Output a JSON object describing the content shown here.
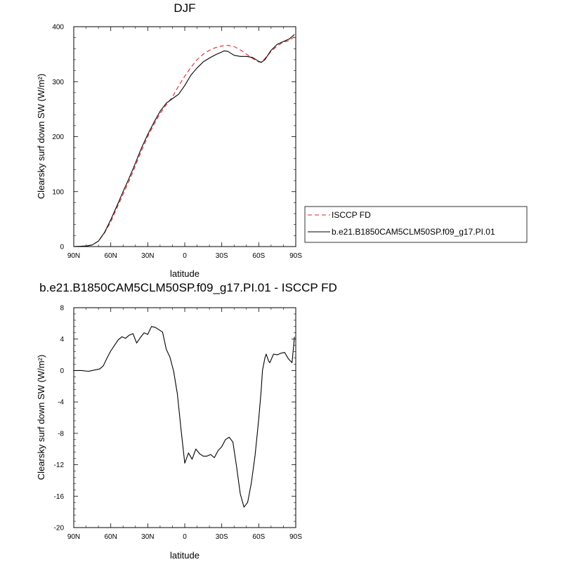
{
  "chart_data": [
    {
      "type": "line",
      "title": "DJF",
      "xlabel": "latitude",
      "ylabel": "Clearsky surf down SW (W/m²)",
      "xlim": [
        90,
        -90
      ],
      "ylim": [
        0,
        400
      ],
      "xticks": [
        90,
        60,
        30,
        0,
        -30,
        -60,
        -90
      ],
      "xtick_labels": [
        "90N",
        "60N",
        "30N",
        "0",
        "30S",
        "60S",
        "90S"
      ],
      "yticks": [
        0,
        100,
        200,
        300,
        400
      ],
      "ytick_labels": [
        "0",
        "100",
        "200",
        "300",
        "400"
      ],
      "legend": {
        "position": "right",
        "entries": [
          "ISCCP FD",
          "b.e21.B1850CAM5CLM50SP.f09_g17.PI.01"
        ]
      },
      "series": [
        {
          "name": "ISCCP FD",
          "color": "#e8202a",
          "dash": "dashed",
          "x": [
            90,
            80,
            75,
            70,
            65,
            60,
            55,
            50,
            45,
            40,
            35,
            30,
            25,
            20,
            15,
            10,
            5,
            0,
            -5,
            -10,
            -15,
            -20,
            -25,
            -30,
            -35,
            -40,
            -45,
            -50,
            -55,
            -60,
            -62,
            -65,
            -70,
            -75,
            -80,
            -85,
            -89
          ],
          "y": [
            0,
            1,
            3,
            10,
            25,
            45,
            70,
            95,
            120,
            147,
            175,
            200,
            222,
            242,
            258,
            272,
            292,
            310,
            326,
            340,
            350,
            357,
            362,
            365,
            366,
            364,
            358,
            350,
            342,
            336,
            336,
            342,
            355,
            365,
            372,
            375,
            382
          ]
        },
        {
          "name": "b.e21.B1850CAM5CLM50SP.f09_g17.PI.01",
          "color": "#000000",
          "dash": "solid",
          "x": [
            90,
            80,
            75,
            70,
            65,
            60,
            55,
            50,
            45,
            40,
            35,
            30,
            25,
            20,
            15,
            10,
            5,
            0,
            -5,
            -10,
            -15,
            -20,
            -25,
            -30,
            -32,
            -35,
            -40,
            -45,
            -50,
            -55,
            -60,
            -62,
            -65,
            -70,
            -75,
            -80,
            -85,
            -89
          ],
          "y": [
            0,
            1,
            3,
            10,
            26,
            49,
            74,
            100,
            125,
            152,
            180,
            204,
            226,
            246,
            261,
            269,
            277,
            293,
            312,
            325,
            336,
            343,
            349,
            354,
            356,
            355,
            348,
            346,
            346,
            344,
            337,
            335,
            340,
            357,
            368,
            373,
            378,
            386
          ]
        }
      ]
    },
    {
      "type": "line",
      "title": "b.e21.B1850CAM5CLM50SP.f09_g17.PI.01 - ISCCP FD",
      "xlabel": "latitude",
      "ylabel": "Clearsky surf down SW (W/m²)",
      "xlim": [
        90,
        -90
      ],
      "ylim": [
        -20,
        8
      ],
      "xticks": [
        90,
        60,
        30,
        0,
        -30,
        -60,
        -90
      ],
      "xtick_labels": [
        "90N",
        "60N",
        "30N",
        "0",
        "30S",
        "60S",
        "90S"
      ],
      "yticks": [
        -20,
        -16,
        -12,
        -8,
        -4,
        0,
        4,
        8
      ],
      "ytick_labels": [
        "-20",
        "-16",
        "-12",
        "-8",
        "-4",
        "0",
        "4",
        "8"
      ],
      "series": [
        {
          "color": "#000000",
          "dash": "solid",
          "x": [
            90,
            84,
            78,
            75,
            72,
            69,
            66,
            63,
            60,
            57,
            54,
            51,
            48,
            45,
            42,
            39,
            36,
            33,
            30,
            27,
            24,
            21,
            18,
            15,
            12,
            9,
            6,
            3,
            0,
            -3,
            -6,
            -9,
            -12,
            -15,
            -18,
            -21,
            -24,
            -27,
            -30,
            -33,
            -36,
            -39,
            -42,
            -45,
            -48,
            -51,
            -54,
            -57,
            -60,
            -62,
            -63,
            -65,
            -66,
            -68,
            -69,
            -72,
            -75,
            -78,
            -81,
            -84,
            -87,
            -89
          ],
          "y": [
            0,
            0,
            -0.1,
            0,
            0.1,
            0.2,
            0.6,
            1.6,
            2.5,
            3.2,
            3.9,
            4.3,
            4.1,
            4.5,
            4.7,
            3.5,
            4.2,
            4.8,
            4.6,
            5.6,
            5.5,
            5.2,
            4.9,
            2.7,
            1.7,
            -0.1,
            -3,
            -7.5,
            -11.8,
            -10.5,
            -11.3,
            -10,
            -10.6,
            -10.9,
            -10.9,
            -10.7,
            -11.1,
            -10.2,
            -9.7,
            -8.8,
            -8.5,
            -9.1,
            -12.2,
            -15.7,
            -17.4,
            -16.8,
            -14.3,
            -10.8,
            -6.2,
            -2.5,
            0,
            1.6,
            2.1,
            1.2,
            1.0,
            2.1,
            2.0,
            2.2,
            2.3,
            1.5,
            1.0,
            4.3
          ]
        }
      ]
    }
  ]
}
